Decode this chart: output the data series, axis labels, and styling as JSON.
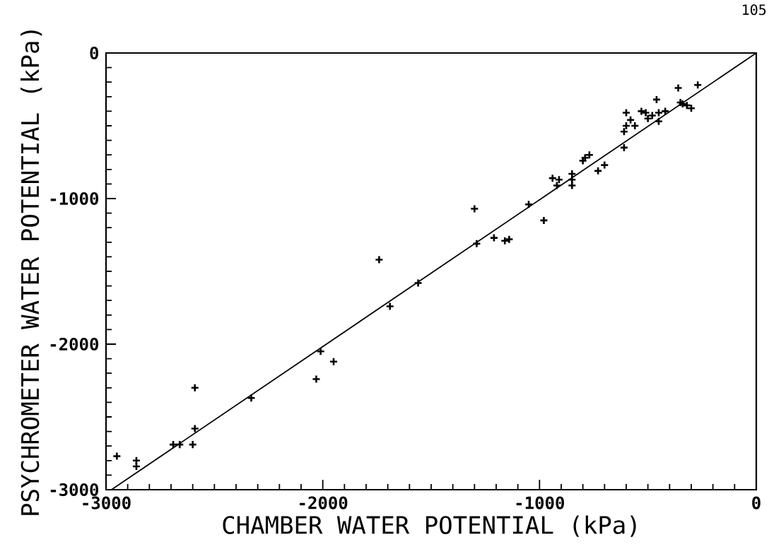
{
  "chart_data": {
    "type": "scatter",
    "xlabel": "CHAMBER WATER POTENTIAL (kPa)",
    "ylabel": "PSYCHROMETER WATER POTENTIAL (kPa)",
    "annotations": [
      "105"
    ],
    "xlim": [
      -3000,
      0
    ],
    "ylim": [
      -3000,
      0
    ],
    "xticks": [
      -3000,
      -2000,
      -1000,
      0
    ],
    "yticks": [
      -3000,
      -2000,
      -1000,
      0
    ],
    "marker": "cross",
    "series": [
      {
        "color": "#000000",
        "x": [
          -2950,
          -2860,
          -2860,
          -2690,
          -2660,
          -2600,
          -2590,
          -2590,
          -2330,
          -2030,
          -2010,
          -1950,
          -1740,
          -1690,
          -1560,
          -1300,
          -1290,
          -1210,
          -1160,
          -1140,
          -1050,
          -980,
          -940,
          -920,
          -910,
          -850,
          -850,
          -850,
          -790,
          -770,
          -800,
          -730,
          -700,
          -610,
          -600,
          -600,
          -610,
          -580,
          -560,
          -530,
          -510,
          -500,
          -460,
          -480,
          -450,
          -450,
          -420,
          -360,
          -350,
          -340,
          -320,
          -300,
          -270
        ],
        "values": [
          -2770,
          -2800,
          -2840,
          -2690,
          -2690,
          -2690,
          -2300,
          -2580,
          -2370,
          -2240,
          -2050,
          -2120,
          -1420,
          -1740,
          -1580,
          -1070,
          -1310,
          -1270,
          -1290,
          -1280,
          -1040,
          -1150,
          -860,
          -910,
          -870,
          -870,
          -910,
          -830,
          -720,
          -700,
          -740,
          -810,
          -770,
          -650,
          -410,
          -500,
          -540,
          -460,
          -500,
          -400,
          -410,
          -450,
          -320,
          -430,
          -410,
          -470,
          -400,
          -240,
          -340,
          -350,
          -360,
          -380,
          -220
        ]
      },
      {
        "type": "line",
        "color": "#000000",
        "marker": "none",
        "line_style": "solid",
        "x": [
          -2975,
          0
        ],
        "values": [
          -3000,
          0
        ]
      }
    ]
  }
}
